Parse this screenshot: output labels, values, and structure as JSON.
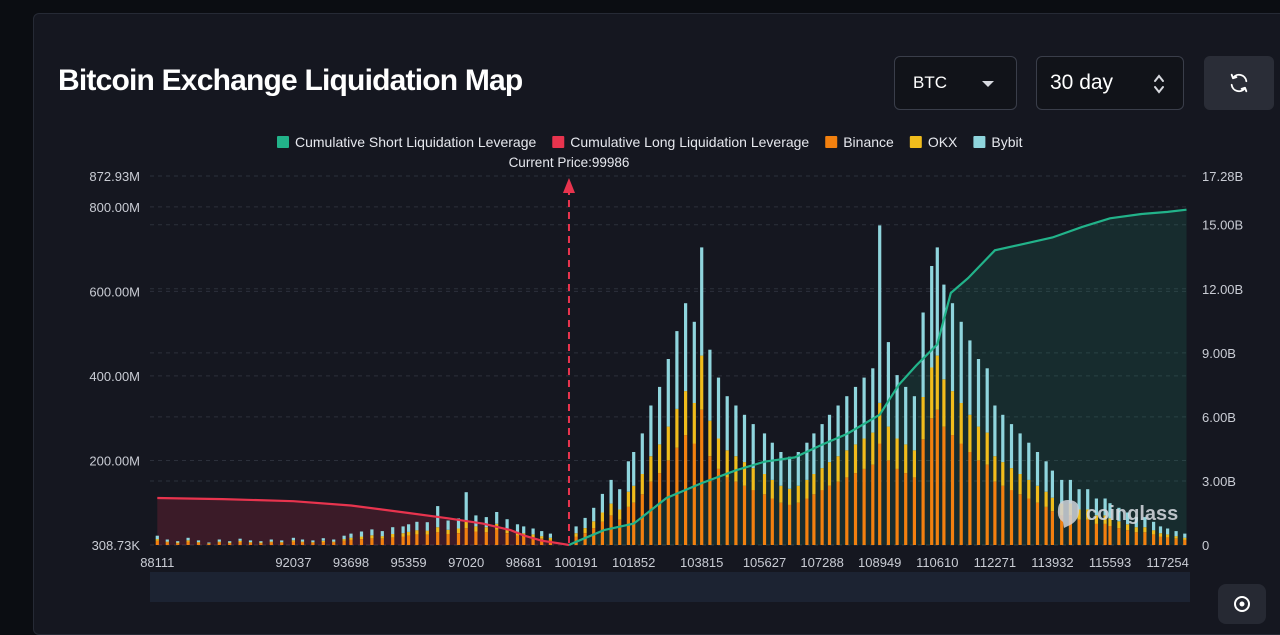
{
  "header": {
    "title": "Bitcoin Exchange Liquidation Map",
    "symbol_select": "BTC",
    "range_select": "30 day"
  },
  "icons": {
    "refresh": "refresh-icon",
    "dropdown": "chevron-down-icon",
    "stepper": "up-down-chevron-icon",
    "settings": "gear-icon",
    "watermark_logo": "coinglass-logo"
  },
  "watermark": "coinglass",
  "colors": {
    "short": "#22b38a",
    "long": "#e8344e",
    "binance": "#f2800f",
    "okx": "#f0bc1c",
    "bybit": "#8fd5dd",
    "price_line": "#e8344e"
  },
  "chart_data": {
    "type": "bar",
    "title": "Bitcoin Exchange Liquidation Map",
    "current_price_label": "Current Price:99986",
    "current_price": 99986,
    "x_tick_labels": [
      "88111",
      "92037",
      "93698",
      "95359",
      "97020",
      "98681",
      "100191",
      "101852",
      "103815",
      "105627",
      "107288",
      "108949",
      "110610",
      "112271",
      "113932",
      "115593",
      "117254"
    ],
    "left_axis_labels": [
      "872.93M",
      "800.00M",
      "600.00M",
      "400.00M",
      "200.00M",
      "308.73K"
    ],
    "left_axis_values": [
      872.93,
      800,
      600,
      400,
      200,
      0.31
    ],
    "left_ylim": [
      0,
      872.93
    ],
    "right_axis_labels": [
      "17.28B",
      "15.00B",
      "12.00B",
      "9.00B",
      "6.00B",
      "3.00B",
      "0"
    ],
    "right_axis_values": [
      17.28,
      15,
      12,
      9,
      6,
      3,
      0
    ],
    "right_ylim": [
      0,
      17.28
    ],
    "x_range": [
      87900,
      117900
    ],
    "legend": [
      {
        "name": "Cumulative Short Liquidation Leverage",
        "color": "#22b38a"
      },
      {
        "name": "Cumulative Long Liquidation Leverage",
        "color": "#e8344e"
      },
      {
        "name": "Binance",
        "color": "#f2800f"
      },
      {
        "name": "OKX",
        "color": "#f0bc1c"
      },
      {
        "name": "Bybit",
        "color": "#8fd5dd"
      }
    ],
    "legend_position": "top-center",
    "stack_units": "M USD",
    "cumulative_units": "B USD",
    "cumulative_long": {
      "x": [
        88111,
        90000,
        92037,
        93698,
        95359,
        96500,
        97500,
        98300,
        98681,
        99200,
        99700,
        99986
      ],
      "y": [
        2.2,
        2.15,
        2.05,
        1.85,
        1.5,
        1.25,
        1.0,
        0.7,
        0.45,
        0.2,
        0.08,
        0
      ]
    },
    "cumulative_short": {
      "x": [
        99986,
        100191,
        101000,
        101852,
        102800,
        103815,
        104800,
        105627,
        106500,
        107288,
        108000,
        108949,
        109500,
        110000,
        110610,
        111000,
        111500,
        112271,
        113100,
        113932,
        114800,
        115593,
        116500,
        117254,
        117800
      ],
      "y": [
        0,
        0.15,
        0.7,
        1.0,
        2.2,
        2.9,
        3.5,
        3.9,
        4.1,
        4.7,
        5.2,
        6.1,
        7.5,
        8.4,
        9.4,
        11.8,
        12.5,
        13.8,
        14.1,
        14.4,
        14.9,
        15.3,
        15.5,
        15.6,
        15.7
      ]
    },
    "bars": {
      "x": [
        88111,
        88400,
        88700,
        89000,
        89300,
        89600,
        89900,
        90200,
        90500,
        90800,
        91100,
        91400,
        91700,
        92037,
        92300,
        92600,
        92900,
        93200,
        93500,
        93698,
        94000,
        94300,
        94600,
        94900,
        95200,
        95359,
        95600,
        95900,
        96200,
        96500,
        96800,
        97020,
        97300,
        97600,
        97900,
        98200,
        98500,
        98681,
        98950,
        99200,
        99450,
        100191,
        100450,
        100700,
        100950,
        101200,
        101450,
        101700,
        101852,
        102100,
        102350,
        102600,
        102850,
        103100,
        103350,
        103600,
        103815,
        104050,
        104300,
        104550,
        104800,
        105050,
        105300,
        105627,
        105850,
        106100,
        106350,
        106600,
        106850,
        107050,
        107288,
        107500,
        107750,
        108000,
        108250,
        108500,
        108750,
        108949,
        109200,
        109450,
        109700,
        109950,
        110200,
        110450,
        110610,
        110800,
        111050,
        111300,
        111550,
        111800,
        112050,
        112271,
        112500,
        112750,
        113000,
        113250,
        113500,
        113750,
        113932,
        114200,
        114450,
        114700,
        114950,
        115200,
        115450,
        115593,
        115850,
        116100,
        116350,
        116600,
        116850,
        117050,
        117254,
        117500,
        117750
      ],
      "binance": [
        10,
        6,
        4,
        8,
        5,
        3,
        6,
        4,
        7,
        5,
        4,
        6,
        5,
        8,
        6,
        5,
        7,
        6,
        10,
        12,
        14,
        16,
        15,
        18,
        20,
        22,
        25,
        24,
        30,
        26,
        28,
        40,
        32,
        30,
        36,
        28,
        22,
        20,
        18,
        15,
        12,
        20,
        28,
        40,
        55,
        70,
        60,
        90,
        100,
        120,
        150,
        170,
        200,
        230,
        260,
        240,
        320,
        210,
        180,
        160,
        150,
        140,
        130,
        120,
        110,
        100,
        95,
        100,
        110,
        120,
        130,
        140,
        150,
        160,
        170,
        180,
        190,
        240,
        200,
        180,
        170,
        160,
        250,
        300,
        320,
        280,
        260,
        240,
        220,
        200,
        190,
        150,
        140,
        130,
        120,
        110,
        100,
        90,
        80,
        70,
        70,
        60,
        60,
        50,
        50,
        45,
        40,
        35,
        30,
        30,
        25,
        20,
        18,
        15,
        12
      ],
      "okx": [
        4,
        2,
        2,
        3,
        2,
        1,
        2,
        2,
        3,
        2,
        2,
        2,
        2,
        3,
        2,
        2,
        3,
        2,
        4,
        5,
        6,
        7,
        6,
        8,
        8,
        9,
        10,
        10,
        12,
        10,
        11,
        15,
        12,
        12,
        14,
        11,
        9,
        8,
        7,
        6,
        5,
        8,
        12,
        16,
        22,
        28,
        24,
        36,
        40,
        48,
        60,
        68,
        80,
        92,
        104,
        96,
        128,
        84,
        72,
        64,
        60,
        56,
        52,
        48,
        44,
        40,
        38,
        40,
        44,
        48,
        52,
        56,
        60,
        64,
        68,
        72,
        76,
        96,
        80,
        72,
        68,
        64,
        100,
        120,
        128,
        112,
        104,
        96,
        88,
        80,
        76,
        60,
        56,
        52,
        48,
        44,
        40,
        36,
        32,
        28,
        28,
        24,
        24,
        20,
        20,
        18,
        16,
        14,
        12,
        12,
        10,
        8,
        7,
        6,
        5
      ],
      "bybit": [
        8,
        5,
        3,
        6,
        4,
        2,
        5,
        3,
        5,
        4,
        3,
        5,
        4,
        6,
        5,
        4,
        6,
        5,
        8,
        10,
        12,
        14,
        12,
        16,
        16,
        18,
        20,
        20,
        50,
        22,
        24,
        70,
        26,
        24,
        28,
        22,
        18,
        16,
        14,
        12,
        10,
        16,
        24,
        32,
        44,
        56,
        48,
        72,
        80,
        96,
        120,
        136,
        160,
        184,
        208,
        192,
        256,
        168,
        144,
        128,
        120,
        112,
        104,
        96,
        88,
        80,
        76,
        80,
        88,
        96,
        104,
        112,
        120,
        128,
        136,
        144,
        152,
        420,
        200,
        150,
        136,
        128,
        200,
        240,
        256,
        224,
        208,
        192,
        176,
        160,
        152,
        120,
        112,
        104,
        96,
        88,
        80,
        72,
        64,
        56,
        56,
        48,
        48,
        40,
        40,
        36,
        32,
        28,
        24,
        24,
        20,
        16,
        14,
        12,
        10
      ]
    }
  }
}
